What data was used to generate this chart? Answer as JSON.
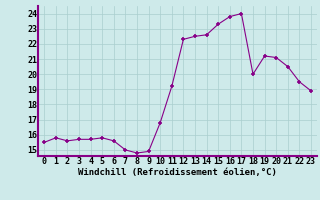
{
  "x": [
    0,
    1,
    2,
    3,
    4,
    5,
    6,
    7,
    8,
    9,
    10,
    11,
    12,
    13,
    14,
    15,
    16,
    17,
    18,
    19,
    20,
    21,
    22,
    23
  ],
  "y": [
    15.5,
    15.8,
    15.6,
    15.7,
    15.7,
    15.8,
    15.6,
    15.0,
    14.8,
    14.9,
    16.8,
    19.2,
    22.3,
    22.5,
    22.6,
    23.3,
    23.8,
    24.0,
    20.0,
    21.2,
    21.1,
    20.5,
    19.5,
    18.9
  ],
  "bg_color": "#ceeaea",
  "grid_color": "#aacece",
  "line_color": "#880088",
  "marker_color": "#880088",
  "xlabel": "Windchill (Refroidissement éolien,°C)",
  "ylabel_ticks": [
    15,
    16,
    17,
    18,
    19,
    20,
    21,
    22,
    23,
    24
  ],
  "xlim": [
    -0.5,
    23.5
  ],
  "ylim": [
    14.6,
    24.5
  ],
  "xlabel_fontsize": 6.5,
  "tick_fontsize": 6.0,
  "bottom_bar_color": "#880088"
}
